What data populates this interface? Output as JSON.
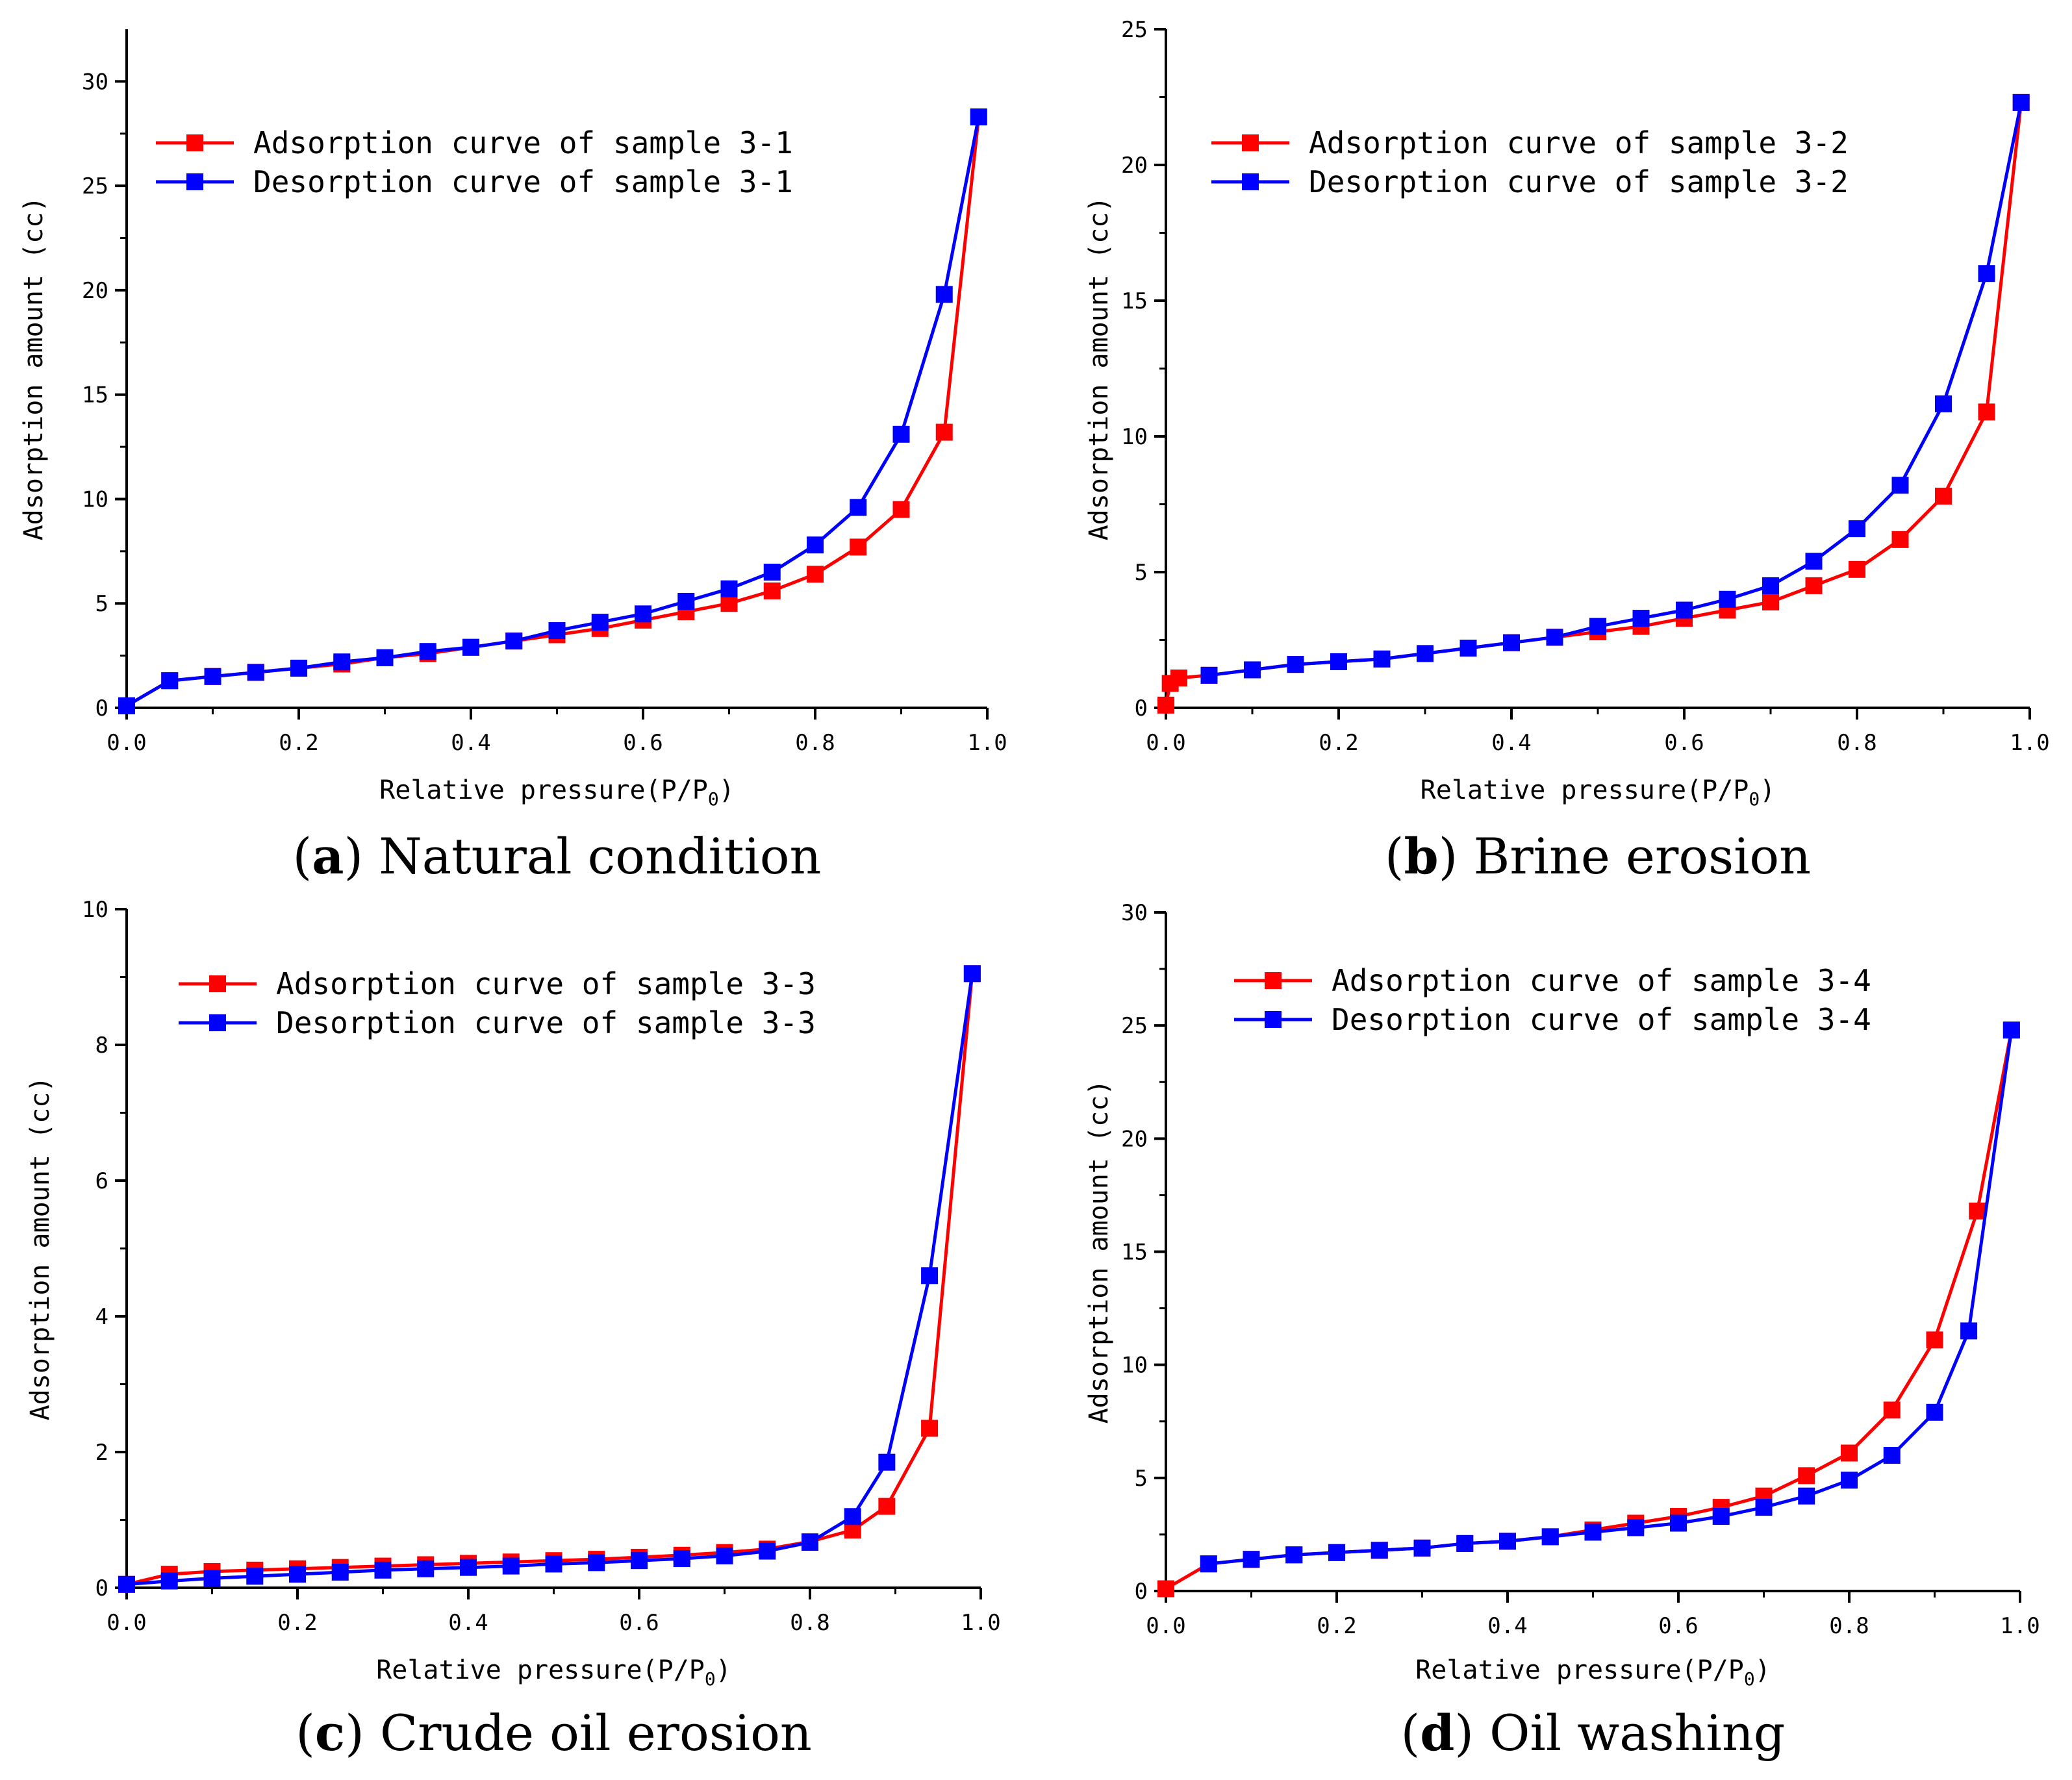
{
  "chart_data": [
    {
      "type": "line",
      "caption_letter": "a",
      "caption_text": "Natural condition",
      "xlabel": "Relative pressure(P/P",
      "xlabel_sub": "0",
      "xlabel_end": ")",
      "ylabel": "Adsorption amount (cc)",
      "xlim": [
        0,
        1.0
      ],
      "ylim": [
        0,
        32.5
      ],
      "xticks": [
        "0.0",
        "0.2",
        "0.4",
        "0.6",
        "0.8",
        "1.0"
      ],
      "xtick_values": [
        0,
        0.2,
        0.4,
        0.6,
        0.8,
        1.0
      ],
      "yticks": [
        "0",
        "5",
        "10",
        "15",
        "20",
        "25",
        "30"
      ],
      "ytick_values": [
        0,
        5,
        10,
        15,
        20,
        25,
        30
      ],
      "series": [
        {
          "name": "Adsorption curve of sample 3-1",
          "color": "#ff0000",
          "x": [
            0.0,
            0.05,
            0.1,
            0.15,
            0.2,
            0.25,
            0.3,
            0.35,
            0.4,
            0.45,
            0.5,
            0.55,
            0.6,
            0.65,
            0.7,
            0.75,
            0.8,
            0.85,
            0.9,
            0.95,
            0.99
          ],
          "y": [
            0.1,
            1.3,
            1.5,
            1.7,
            1.9,
            2.1,
            2.4,
            2.6,
            2.9,
            3.2,
            3.5,
            3.8,
            4.2,
            4.6,
            5.0,
            5.6,
            6.4,
            7.7,
            9.5,
            13.2,
            28.3
          ]
        },
        {
          "name": "Desorption curve of sample 3-1",
          "color": "#0000ff",
          "x": [
            0.0,
            0.05,
            0.1,
            0.15,
            0.2,
            0.25,
            0.3,
            0.35,
            0.4,
            0.45,
            0.5,
            0.55,
            0.6,
            0.65,
            0.7,
            0.75,
            0.8,
            0.85,
            0.9,
            0.95,
            0.99
          ],
          "y": [
            0.1,
            1.3,
            1.5,
            1.7,
            1.9,
            2.2,
            2.4,
            2.7,
            2.9,
            3.2,
            3.7,
            4.1,
            4.5,
            5.1,
            5.7,
            6.5,
            7.8,
            9.6,
            13.1,
            19.8,
            28.3
          ]
        }
      ]
    },
    {
      "type": "line",
      "caption_letter": "b",
      "caption_text": "Brine erosion",
      "xlabel": "Relative pressure(P/P",
      "xlabel_sub": "0",
      "xlabel_end": ")",
      "ylabel": "Adsorption amount (cc)",
      "xlim": [
        0,
        1.0
      ],
      "ylim": [
        0,
        25
      ],
      "xticks": [
        "0.0",
        "0.2",
        "0.4",
        "0.6",
        "0.8",
        "1.0"
      ],
      "xtick_values": [
        0,
        0.2,
        0.4,
        0.6,
        0.8,
        1.0
      ],
      "yticks": [
        "0",
        "5",
        "10",
        "15",
        "20",
        "25"
      ],
      "ytick_values": [
        0,
        5,
        10,
        15,
        20,
        25
      ],
      "series": [
        {
          "name": "Adsorption curve of sample 3-2",
          "color": "#ff0000",
          "x": [
            0.0,
            0.005,
            0.015,
            0.05,
            0.1,
            0.15,
            0.2,
            0.25,
            0.3,
            0.35,
            0.4,
            0.45,
            0.5,
            0.55,
            0.6,
            0.65,
            0.7,
            0.75,
            0.8,
            0.85,
            0.9,
            0.95,
            0.99
          ],
          "y": [
            0.1,
            0.9,
            1.1,
            1.2,
            1.4,
            1.6,
            1.7,
            1.8,
            2.0,
            2.2,
            2.4,
            2.6,
            2.8,
            3.0,
            3.3,
            3.6,
            3.9,
            4.5,
            5.1,
            6.2,
            7.8,
            10.9,
            22.3
          ]
        },
        {
          "name": "Desorption curve of sample 3-2",
          "color": "#0000ff",
          "x": [
            0.05,
            0.1,
            0.15,
            0.2,
            0.25,
            0.3,
            0.35,
            0.4,
            0.45,
            0.5,
            0.55,
            0.6,
            0.65,
            0.7,
            0.75,
            0.8,
            0.85,
            0.9,
            0.95,
            0.99
          ],
          "y": [
            1.2,
            1.4,
            1.6,
            1.7,
            1.8,
            2.0,
            2.2,
            2.4,
            2.6,
            3.0,
            3.3,
            3.6,
            4.0,
            4.5,
            5.4,
            6.6,
            8.2,
            11.2,
            16.0,
            22.3
          ]
        }
      ]
    },
    {
      "type": "line",
      "caption_letter": "c",
      "caption_text": "Crude oil erosion",
      "xlabel": "Relative pressure(P/P",
      "xlabel_sub": "0",
      "xlabel_end": ")",
      "ylabel": "Adsorption amount (cc)",
      "xlim": [
        0,
        1.0
      ],
      "ylim": [
        0,
        10
      ],
      "xticks": [
        "0.0",
        "0.2",
        "0.4",
        "0.6",
        "0.8",
        "1.0"
      ],
      "xtick_values": [
        0,
        0.2,
        0.4,
        0.6,
        0.8,
        1.0
      ],
      "yticks": [
        "0",
        "2",
        "4",
        "6",
        "8",
        "10"
      ],
      "ytick_values": [
        0,
        2,
        4,
        6,
        8,
        10
      ],
      "series": [
        {
          "name": "Adsorption curve of sample 3-3",
          "color": "#ff0000",
          "x": [
            0.0,
            0.05,
            0.1,
            0.15,
            0.2,
            0.25,
            0.3,
            0.35,
            0.4,
            0.45,
            0.5,
            0.55,
            0.6,
            0.65,
            0.7,
            0.75,
            0.8,
            0.85,
            0.89,
            0.94,
            0.99
          ],
          "y": [
            0.05,
            0.2,
            0.24,
            0.26,
            0.28,
            0.3,
            0.32,
            0.34,
            0.36,
            0.38,
            0.4,
            0.42,
            0.45,
            0.48,
            0.52,
            0.57,
            0.68,
            0.85,
            1.2,
            2.35,
            9.05
          ]
        },
        {
          "name": "Desorption curve of sample 3-3",
          "color": "#0000ff",
          "x": [
            0.0,
            0.05,
            0.1,
            0.15,
            0.2,
            0.25,
            0.3,
            0.35,
            0.4,
            0.45,
            0.5,
            0.55,
            0.6,
            0.65,
            0.7,
            0.75,
            0.8,
            0.85,
            0.89,
            0.94,
            0.99
          ],
          "y": [
            0.05,
            0.1,
            0.14,
            0.17,
            0.2,
            0.23,
            0.26,
            0.28,
            0.3,
            0.32,
            0.35,
            0.37,
            0.4,
            0.43,
            0.47,
            0.54,
            0.67,
            1.05,
            1.85,
            4.6,
            9.05
          ]
        }
      ]
    },
    {
      "type": "line",
      "caption_letter": "d",
      "caption_text": "Oil washing",
      "xlabel": "Relative pressure(P/P",
      "xlabel_sub": "0",
      "xlabel_end": ")",
      "ylabel": "Adsorption amount (cc)",
      "xlim": [
        0,
        1.0
      ],
      "ylim": [
        0,
        30
      ],
      "xticks": [
        "0.0",
        "0.2",
        "0.4",
        "0.6",
        "0.8",
        "1.0"
      ],
      "xtick_values": [
        0,
        0.2,
        0.4,
        0.6,
        0.8,
        1.0
      ],
      "yticks": [
        "0",
        "5",
        "10",
        "15",
        "20",
        "25",
        "30"
      ],
      "ytick_values": [
        0,
        5,
        10,
        15,
        20,
        25,
        30
      ],
      "series": [
        {
          "name": "Adsorption curve of sample 3-4",
          "color": "#ff0000",
          "x": [
            0.0,
            0.05,
            0.1,
            0.15,
            0.2,
            0.25,
            0.3,
            0.35,
            0.4,
            0.45,
            0.5,
            0.55,
            0.6,
            0.65,
            0.7,
            0.75,
            0.8,
            0.85,
            0.9,
            0.95,
            0.99
          ],
          "y": [
            0.1,
            1.2,
            1.4,
            1.6,
            1.7,
            1.8,
            1.9,
            2.1,
            2.2,
            2.4,
            2.7,
            3.0,
            3.3,
            3.7,
            4.2,
            5.1,
            6.1,
            8.0,
            11.1,
            16.8,
            24.8
          ]
        },
        {
          "name": "Desorption curve of sample 3-4",
          "color": "#0000ff",
          "x": [
            0.05,
            0.1,
            0.15,
            0.2,
            0.25,
            0.3,
            0.35,
            0.4,
            0.45,
            0.5,
            0.55,
            0.6,
            0.65,
            0.7,
            0.75,
            0.8,
            0.85,
            0.9,
            0.94,
            0.99
          ],
          "y": [
            1.2,
            1.4,
            1.6,
            1.7,
            1.8,
            1.9,
            2.1,
            2.2,
            2.4,
            2.6,
            2.8,
            3.0,
            3.3,
            3.7,
            4.2,
            4.9,
            6.0,
            7.9,
            11.5,
            24.8
          ]
        }
      ]
    }
  ]
}
